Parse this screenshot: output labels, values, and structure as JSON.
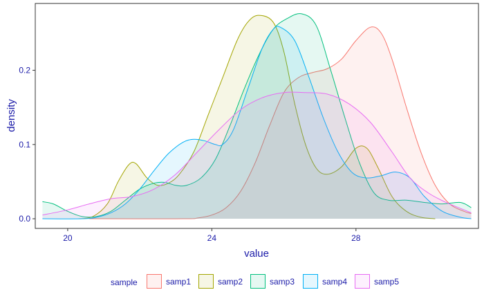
{
  "chart_data": {
    "type": "area",
    "xlabel": "value",
    "ylabel": "density",
    "xlim": [
      19.1,
      31.4
    ],
    "ylim": [
      -0.013,
      0.29
    ],
    "x_ticks": [
      {
        "value": 20,
        "label": "20"
      },
      {
        "value": 24,
        "label": "24"
      },
      {
        "value": 28,
        "label": "28"
      }
    ],
    "y_ticks": [
      {
        "value": 0.0,
        "label": "0.0"
      },
      {
        "value": 0.1,
        "label": "0.1"
      },
      {
        "value": 0.2,
        "label": "0.2"
      }
    ],
    "grid": false,
    "legend": {
      "title": "sample",
      "position": "bottom"
    },
    "series": [
      {
        "name": "samp1",
        "color": "#F8766D",
        "points": [
          [
            20.6,
            0
          ],
          [
            23.2,
            0
          ],
          [
            23.6,
            0.001
          ],
          [
            24.0,
            0.005
          ],
          [
            24.4,
            0.015
          ],
          [
            24.8,
            0.037
          ],
          [
            25.2,
            0.075
          ],
          [
            25.6,
            0.125
          ],
          [
            26.0,
            0.17
          ],
          [
            26.4,
            0.19
          ],
          [
            26.8,
            0.197
          ],
          [
            27.2,
            0.202
          ],
          [
            27.6,
            0.215
          ],
          [
            28.0,
            0.24
          ],
          [
            28.4,
            0.258
          ],
          [
            28.7,
            0.25
          ],
          [
            29.0,
            0.215
          ],
          [
            29.4,
            0.15
          ],
          [
            29.8,
            0.09
          ],
          [
            30.2,
            0.045
          ],
          [
            30.6,
            0.02
          ],
          [
            31.0,
            0.01
          ],
          [
            31.2,
            0.007
          ]
        ]
      },
      {
        "name": "samp2",
        "color": "#A3A500",
        "points": [
          [
            20.3,
            0
          ],
          [
            20.7,
            0.003
          ],
          [
            21.1,
            0.02
          ],
          [
            21.4,
            0.05
          ],
          [
            21.7,
            0.073
          ],
          [
            21.9,
            0.074
          ],
          [
            22.2,
            0.055
          ],
          [
            22.5,
            0.045
          ],
          [
            22.8,
            0.048
          ],
          [
            23.1,
            0.06
          ],
          [
            23.5,
            0.09
          ],
          [
            23.9,
            0.14
          ],
          [
            24.3,
            0.19
          ],
          [
            24.7,
            0.24
          ],
          [
            25.0,
            0.265
          ],
          [
            25.3,
            0.274
          ],
          [
            25.7,
            0.265
          ],
          [
            26.0,
            0.225
          ],
          [
            26.3,
            0.155
          ],
          [
            26.6,
            0.1
          ],
          [
            26.9,
            0.068
          ],
          [
            27.2,
            0.06
          ],
          [
            27.6,
            0.07
          ],
          [
            28.0,
            0.095
          ],
          [
            28.3,
            0.095
          ],
          [
            28.6,
            0.07
          ],
          [
            29.0,
            0.03
          ],
          [
            29.4,
            0.01
          ],
          [
            29.8,
            0.002
          ],
          [
            30.2,
            0
          ]
        ]
      },
      {
        "name": "samp3",
        "color": "#00BF7D",
        "points": [
          [
            19.3,
            0.023
          ],
          [
            19.6,
            0.02
          ],
          [
            20.0,
            0.01
          ],
          [
            20.4,
            0.003
          ],
          [
            20.8,
            0.003
          ],
          [
            21.2,
            0.01
          ],
          [
            21.6,
            0.025
          ],
          [
            22.0,
            0.04
          ],
          [
            22.4,
            0.048
          ],
          [
            22.7,
            0.049
          ],
          [
            23.0,
            0.045
          ],
          [
            23.3,
            0.045
          ],
          [
            23.7,
            0.055
          ],
          [
            24.1,
            0.08
          ],
          [
            24.5,
            0.125
          ],
          [
            24.9,
            0.175
          ],
          [
            25.3,
            0.22
          ],
          [
            25.7,
            0.255
          ],
          [
            26.1,
            0.27
          ],
          [
            26.5,
            0.276
          ],
          [
            26.9,
            0.26
          ],
          [
            27.3,
            0.2
          ],
          [
            27.7,
            0.135
          ],
          [
            28.1,
            0.075
          ],
          [
            28.5,
            0.035
          ],
          [
            28.9,
            0.025
          ],
          [
            29.4,
            0.025
          ],
          [
            29.9,
            0.022
          ],
          [
            30.4,
            0.02
          ],
          [
            30.9,
            0.022
          ],
          [
            31.2,
            0.015
          ]
        ]
      },
      {
        "name": "samp4",
        "color": "#00B0F6",
        "points": [
          [
            19.3,
            0
          ],
          [
            20.4,
            0
          ],
          [
            20.8,
            0.002
          ],
          [
            21.2,
            0.008
          ],
          [
            21.6,
            0.02
          ],
          [
            22.0,
            0.04
          ],
          [
            22.4,
            0.065
          ],
          [
            22.8,
            0.088
          ],
          [
            23.2,
            0.103
          ],
          [
            23.5,
            0.107
          ],
          [
            23.8,
            0.105
          ],
          [
            24.1,
            0.1
          ],
          [
            24.3,
            0.1
          ],
          [
            24.6,
            0.12
          ],
          [
            25.0,
            0.175
          ],
          [
            25.4,
            0.23
          ],
          [
            25.7,
            0.255
          ],
          [
            25.9,
            0.258
          ],
          [
            26.3,
            0.24
          ],
          [
            26.7,
            0.19
          ],
          [
            27.1,
            0.135
          ],
          [
            27.5,
            0.09
          ],
          [
            27.9,
            0.062
          ],
          [
            28.3,
            0.055
          ],
          [
            28.7,
            0.058
          ],
          [
            29.1,
            0.063
          ],
          [
            29.5,
            0.055
          ],
          [
            29.9,
            0.03
          ],
          [
            30.4,
            0.01
          ],
          [
            30.9,
            0.002
          ],
          [
            31.2,
            0
          ]
        ]
      },
      {
        "name": "samp5",
        "color": "#E76BF3",
        "points": [
          [
            19.3,
            0.005
          ],
          [
            20.0,
            0.012
          ],
          [
            20.6,
            0.02
          ],
          [
            21.2,
            0.027
          ],
          [
            21.8,
            0.03
          ],
          [
            22.4,
            0.04
          ],
          [
            23.0,
            0.06
          ],
          [
            23.6,
            0.09
          ],
          [
            24.2,
            0.12
          ],
          [
            24.8,
            0.147
          ],
          [
            25.4,
            0.163
          ],
          [
            26.0,
            0.17
          ],
          [
            26.6,
            0.17
          ],
          [
            27.2,
            0.168
          ],
          [
            27.8,
            0.155
          ],
          [
            28.4,
            0.13
          ],
          [
            29.0,
            0.09
          ],
          [
            29.5,
            0.055
          ],
          [
            30.0,
            0.035
          ],
          [
            30.5,
            0.022
          ],
          [
            31.0,
            0.012
          ],
          [
            31.2,
            0.008
          ]
        ]
      }
    ]
  }
}
